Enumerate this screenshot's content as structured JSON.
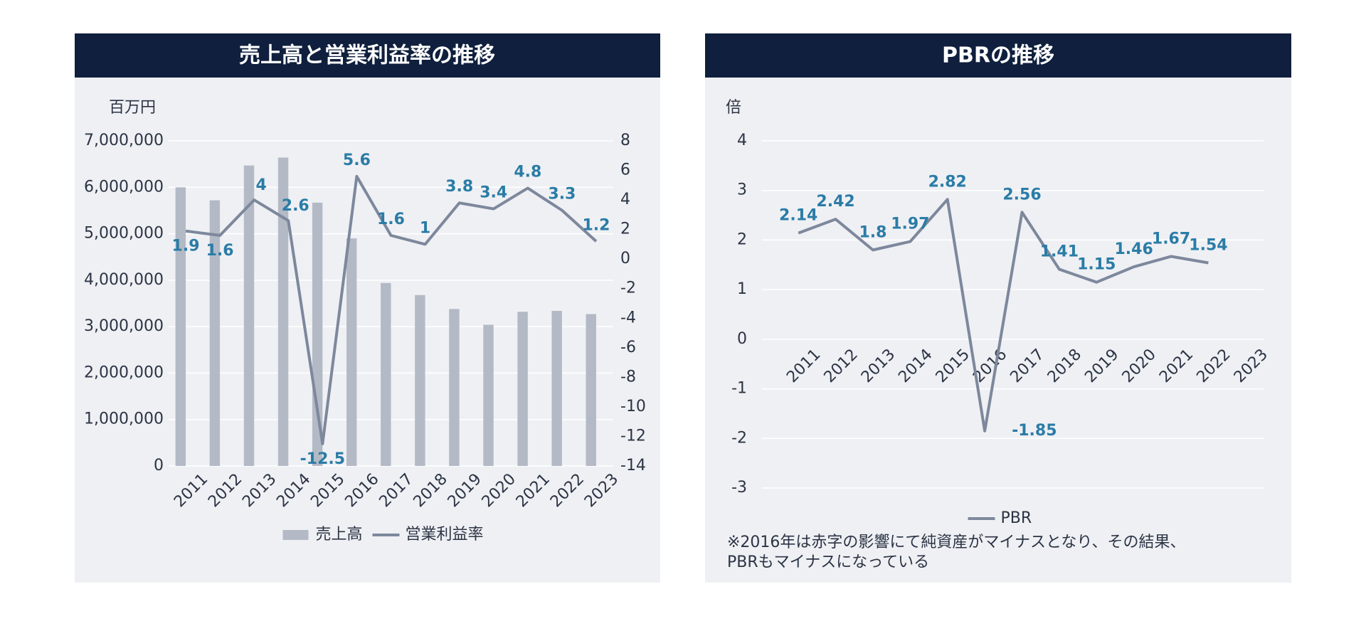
{
  "chart_data": [
    {
      "type": "combo",
      "title": "売上高と営業利益率の推移",
      "y_label": "百万円",
      "categories": [
        "2011",
        "2012",
        "2013",
        "2014",
        "2015",
        "2016",
        "2017",
        "2018",
        "2019",
        "2020",
        "2021",
        "2022",
        "2023"
      ],
      "series": [
        {
          "name": "売上高",
          "type": "bar",
          "color": "#b3bac6",
          "values": [
            6000000,
            5720000,
            6470000,
            6640000,
            5670000,
            4900000,
            3940000,
            3680000,
            3380000,
            3040000,
            3320000,
            3340000,
            3270000
          ]
        },
        {
          "name": "営業利益率",
          "type": "line",
          "axis": "y2",
          "color": "#7d889c",
          "values": [
            1.9,
            1.6,
            4,
            2.6,
            -12.5,
            5.6,
            1.6,
            1,
            3.8,
            3.4,
            4.8,
            3.3,
            1.2
          ]
        }
      ],
      "ylim": [
        0,
        7000000
      ],
      "yticks": [
        0,
        {
          "value": 1000000,
          "label": "1,000,000"
        },
        {
          "value": 2000000,
          "label": "2,000,000"
        },
        {
          "value": 3000000,
          "label": "3,000,000"
        },
        {
          "value": 4000000,
          "label": "4,000,000"
        },
        {
          "value": 5000000,
          "label": "5,000,000"
        },
        {
          "value": 6000000,
          "label": "6,000,000"
        },
        {
          "value": 7000000,
          "label": "7,000,000"
        }
      ],
      "y2lim": [
        -14,
        8
      ],
      "y2ticks": [
        -14,
        -12,
        -10,
        -8,
        -6,
        -4,
        -2,
        0,
        2,
        4,
        6,
        8
      ],
      "grid": true,
      "legend": "bottom",
      "label_color": "#2a7ca6"
    },
    {
      "type": "line",
      "title": "PBRの推移",
      "y_label": "倍",
      "categories": [
        "2011",
        "2012",
        "2013",
        "2014",
        "2015",
        "2016",
        "2017",
        "2018",
        "2019",
        "2020",
        "2021",
        "2022",
        "2023"
      ],
      "series": [
        {
          "name": "PBR",
          "color": "#7d889c",
          "values": [
            2.14,
            2.42,
            1.8,
            1.97,
            2.82,
            -1.85,
            2.56,
            1.41,
            1.15,
            1.46,
            1.67,
            1.54,
            null
          ]
        }
      ],
      "ylim": [
        -3,
        4
      ],
      "yticks": [
        -3,
        -2,
        -1,
        0,
        1,
        2,
        3,
        4
      ],
      "grid": true,
      "legend": "bottom",
      "label_color": "#2a7ca6",
      "note": [
        "※2016年は赤字の影響にて純資産がマイナスとなり、その結果、",
        "PBRもマイナスになっている"
      ]
    }
  ]
}
